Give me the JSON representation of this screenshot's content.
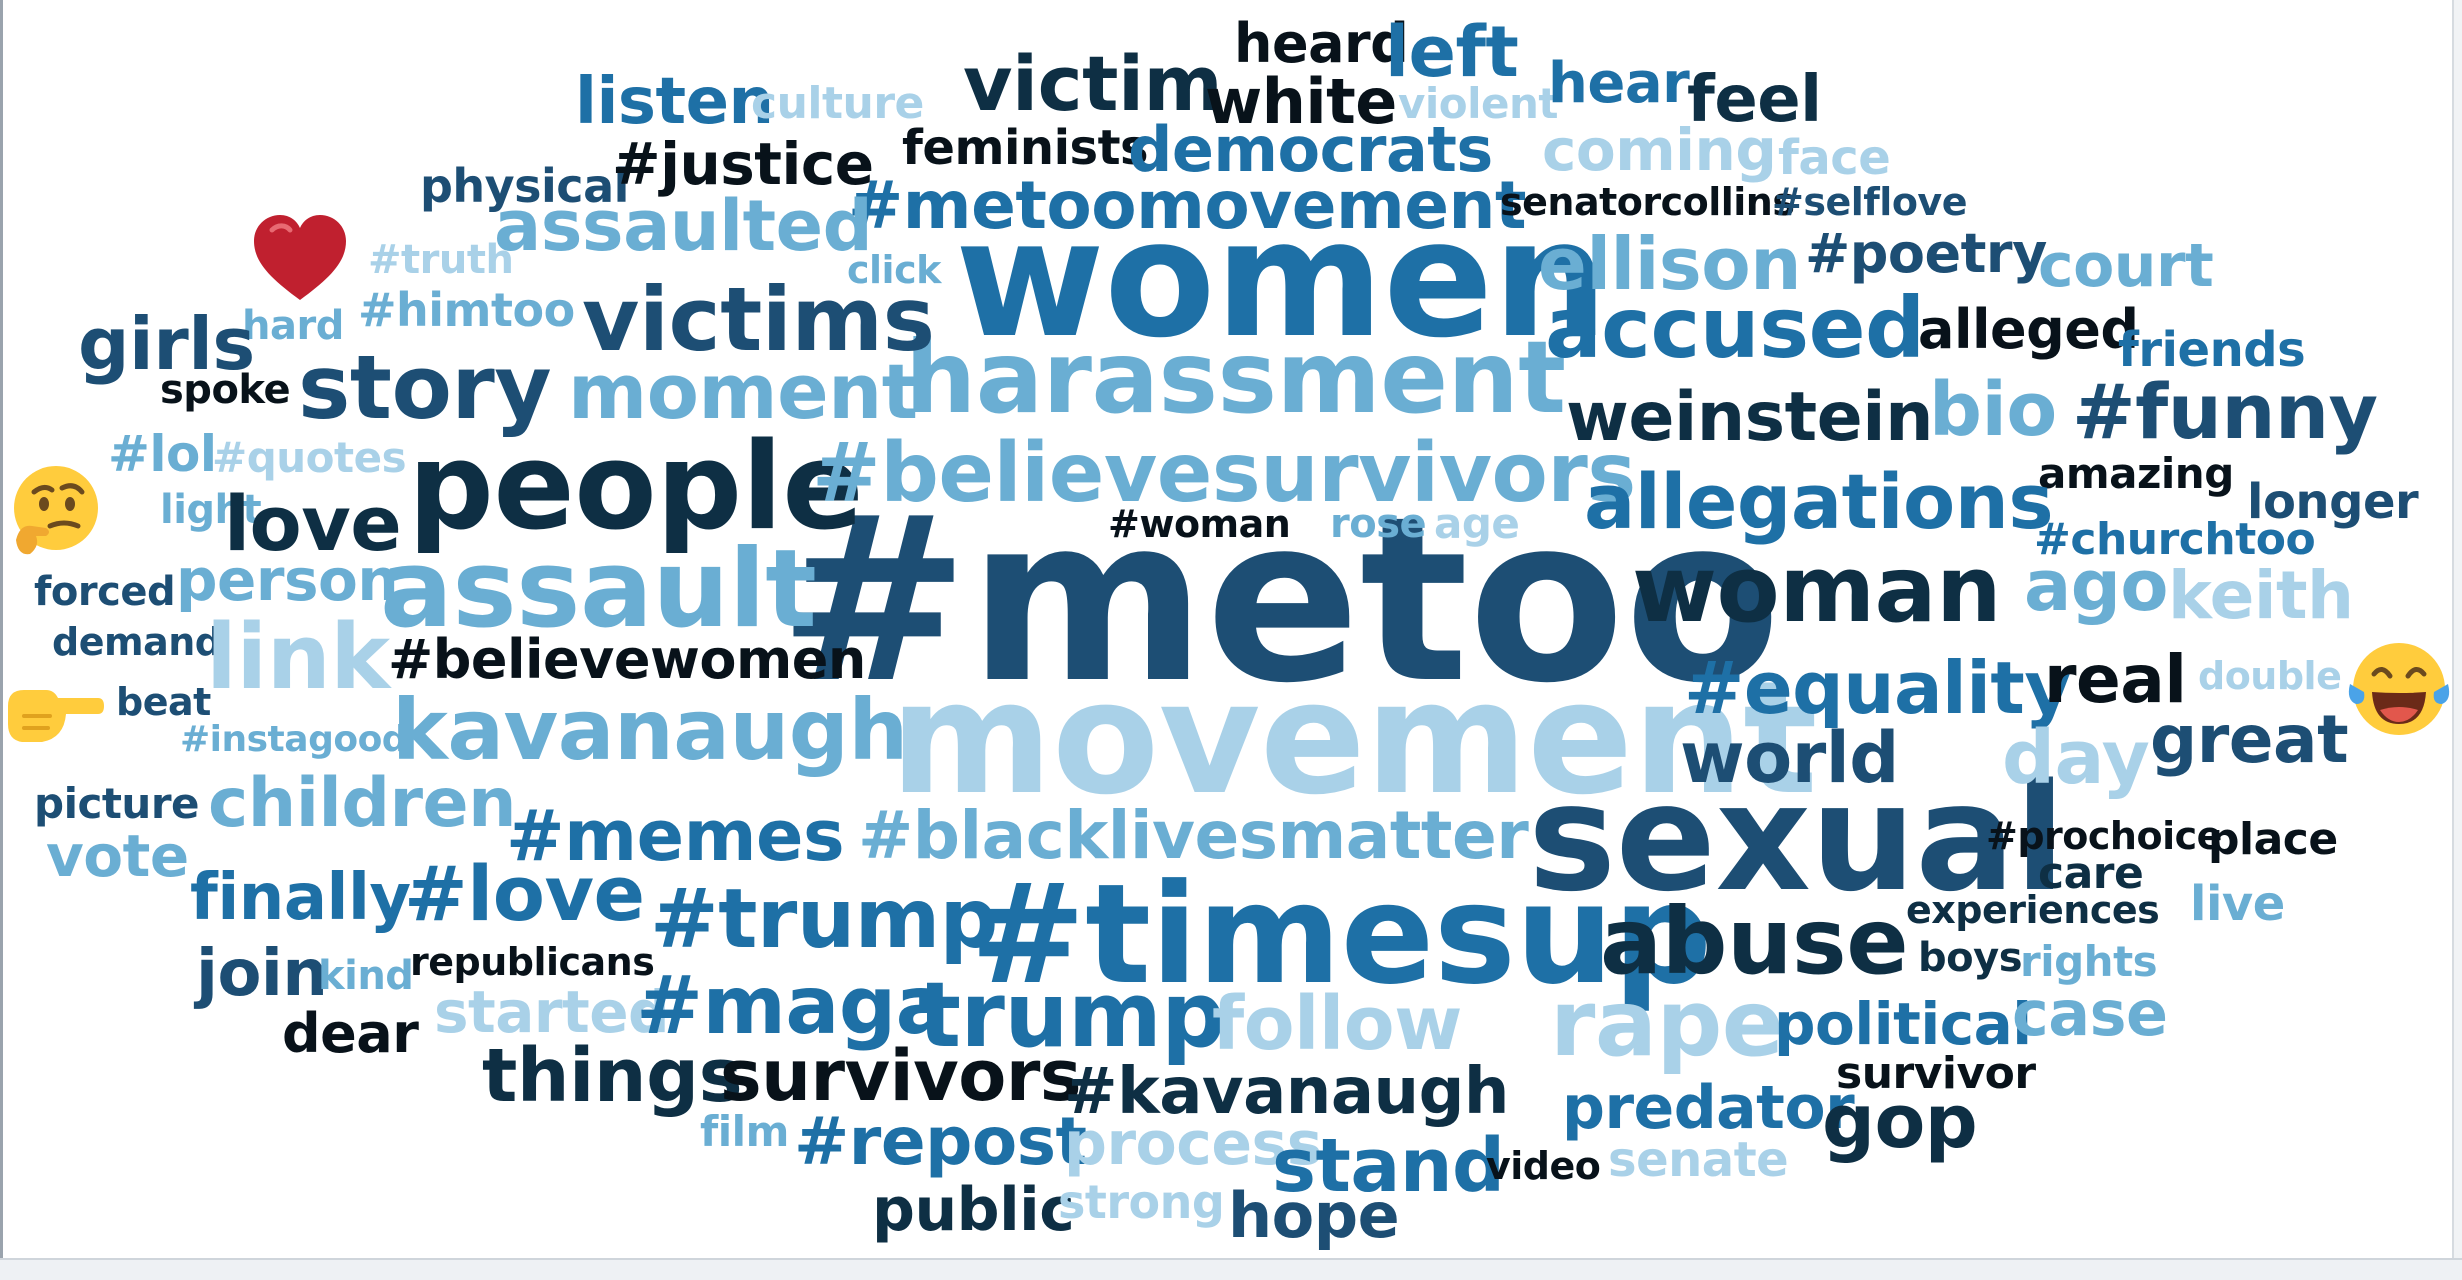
{
  "colors": {
    "c1": "#0e2f44",
    "c2": "#1d4e74",
    "c3": "#1e70a6",
    "c4": "#6aaed3",
    "c5": "#a9d1e8",
    "c6": "#08121a"
  },
  "words": [
    {
      "text": "#metoo",
      "c": "c2"
    },
    {
      "text": "movement",
      "c": "c5"
    },
    {
      "text": "women",
      "c": "c3"
    },
    {
      "text": "harassment",
      "c": "c4"
    },
    {
      "text": "sexual",
      "c": "c2"
    },
    {
      "text": "#timesup",
      "c": "c3"
    },
    {
      "text": "people",
      "c": "c1"
    },
    {
      "text": "assault",
      "c": "c4"
    },
    {
      "text": "#believesurvivors",
      "c": "c4"
    },
    {
      "text": "woman",
      "c": "c1"
    },
    {
      "text": "victim",
      "c": "c1"
    },
    {
      "text": "white",
      "c": "c6"
    },
    {
      "text": "heard",
      "c": "c6"
    },
    {
      "text": "left",
      "c": "c3"
    },
    {
      "text": "violent",
      "c": "c5"
    },
    {
      "text": "hear",
      "c": "c3"
    },
    {
      "text": "feel",
      "c": "c1"
    },
    {
      "text": "listen",
      "c": "c3"
    },
    {
      "text": "culture",
      "c": "c5"
    },
    {
      "text": "feminists",
      "c": "c6"
    },
    {
      "text": "democrats",
      "c": "c3"
    },
    {
      "text": "coming",
      "c": "c5"
    },
    {
      "text": "face",
      "c": "c5"
    },
    {
      "text": "physical",
      "c": "c2"
    },
    {
      "text": "#justice",
      "c": "c6"
    },
    {
      "text": "#metoomovement",
      "c": "c3"
    },
    {
      "text": "senatorcollins",
      "c": "c6"
    },
    {
      "text": "#selflove",
      "c": "c2"
    },
    {
      "text": "assaulted",
      "c": "c4"
    },
    {
      "text": "#truth",
      "c": "c5"
    },
    {
      "text": "click",
      "c": "c4"
    },
    {
      "text": "ellison",
      "c": "c4"
    },
    {
      "text": "#poetry",
      "c": "c2"
    },
    {
      "text": "court",
      "c": "c4"
    },
    {
      "text": "victims",
      "c": "c2"
    },
    {
      "text": "#himtoo",
      "c": "c4"
    },
    {
      "text": "hard",
      "c": "c4"
    },
    {
      "text": "accused",
      "c": "c3"
    },
    {
      "text": "alleged",
      "c": "c6"
    },
    {
      "text": "friends",
      "c": "c3"
    },
    {
      "text": "girls",
      "c": "c2"
    },
    {
      "text": "spoke",
      "c": "c6"
    },
    {
      "text": "story",
      "c": "c2"
    },
    {
      "text": "moment",
      "c": "c4"
    },
    {
      "text": "weinstein",
      "c": "c1"
    },
    {
      "text": "bio",
      "c": "c4"
    },
    {
      "text": "#funny",
      "c": "c2"
    },
    {
      "text": "#lol",
      "c": "c4"
    },
    {
      "text": "#quotes",
      "c": "c5"
    },
    {
      "text": "amazing",
      "c": "c6"
    },
    {
      "text": "light",
      "c": "c4"
    },
    {
      "text": "love",
      "c": "c1"
    },
    {
      "text": "allegations",
      "c": "c3"
    },
    {
      "text": "longer",
      "c": "c2"
    },
    {
      "text": "#woman",
      "c": "c6"
    },
    {
      "text": "rose",
      "c": "c4"
    },
    {
      "text": "age",
      "c": "c5"
    },
    {
      "text": "#churchtoo",
      "c": "c3"
    },
    {
      "text": "forced",
      "c": "c2"
    },
    {
      "text": "person",
      "c": "c4"
    },
    {
      "text": "ago",
      "c": "c4"
    },
    {
      "text": "keith",
      "c": "c5"
    },
    {
      "text": "demand",
      "c": "c2"
    },
    {
      "text": "link",
      "c": "c5"
    },
    {
      "text": "#believewomen",
      "c": "c6"
    },
    {
      "text": "#equality",
      "c": "c3"
    },
    {
      "text": "real",
      "c": "c6"
    },
    {
      "text": "double",
      "c": "c5"
    },
    {
      "text": "beat",
      "c": "c2"
    },
    {
      "text": "kavanaugh",
      "c": "c4"
    },
    {
      "text": "#instagood",
      "c": "c4"
    },
    {
      "text": "world",
      "c": "c2"
    },
    {
      "text": "day",
      "c": "c5"
    },
    {
      "text": "great",
      "c": "c2"
    },
    {
      "text": "picture",
      "c": "c2"
    },
    {
      "text": "children",
      "c": "c4"
    },
    {
      "text": "vote",
      "c": "c4"
    },
    {
      "text": "#memes",
      "c": "c3"
    },
    {
      "text": "#blacklivesmatter",
      "c": "c4"
    },
    {
      "text": "#prochoice",
      "c": "c6"
    },
    {
      "text": "place",
      "c": "c6"
    },
    {
      "text": "care",
      "c": "c1"
    },
    {
      "text": "finally",
      "c": "c3"
    },
    {
      "text": "#love",
      "c": "c3"
    },
    {
      "text": "#trump",
      "c": "c3"
    },
    {
      "text": "abuse",
      "c": "c1"
    },
    {
      "text": "experiences",
      "c": "c1"
    },
    {
      "text": "live",
      "c": "c4"
    },
    {
      "text": "join",
      "c": "c2"
    },
    {
      "text": "kind",
      "c": "c4"
    },
    {
      "text": "republicans",
      "c": "c6"
    },
    {
      "text": "boys",
      "c": "c1"
    },
    {
      "text": "rights",
      "c": "c4"
    },
    {
      "text": "started",
      "c": "c5"
    },
    {
      "text": "#maga",
      "c": "c3"
    },
    {
      "text": "trump",
      "c": "c3"
    },
    {
      "text": "follow",
      "c": "c5"
    },
    {
      "text": "rape",
      "c": "c5"
    },
    {
      "text": "political",
      "c": "c3"
    },
    {
      "text": "case",
      "c": "c4"
    },
    {
      "text": "dear",
      "c": "c6"
    },
    {
      "text": "things",
      "c": "c1"
    },
    {
      "text": "survivors",
      "c": "c6"
    },
    {
      "text": "#kavanaugh",
      "c": "c1"
    },
    {
      "text": "survivor",
      "c": "c6"
    },
    {
      "text": "predator",
      "c": "c3"
    },
    {
      "text": "gop",
      "c": "c1"
    },
    {
      "text": "film",
      "c": "c4"
    },
    {
      "text": "#repost",
      "c": "c3"
    },
    {
      "text": "process",
      "c": "c5"
    },
    {
      "text": "stand",
      "c": "c3"
    },
    {
      "text": "video",
      "c": "c6"
    },
    {
      "text": "senate",
      "c": "c5"
    },
    {
      "text": "public",
      "c": "c1"
    },
    {
      "text": "strong",
      "c": "c5"
    },
    {
      "text": "hope",
      "c": "c2"
    }
  ],
  "emojis": [
    {
      "icon": "heart-icon"
    },
    {
      "icon": "thinking-face-icon"
    },
    {
      "icon": "pointing-hand-icon"
    },
    {
      "icon": "tears-of-joy-icon"
    }
  ]
}
